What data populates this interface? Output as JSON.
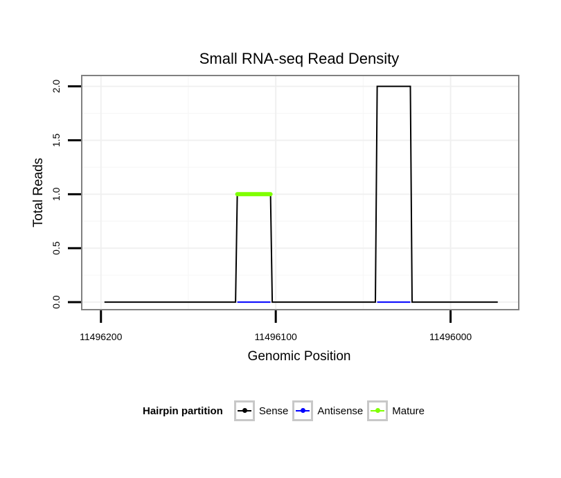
{
  "chart_data": {
    "type": "line",
    "title": "Small RNA-seq Read Density",
    "xlabel": "Genomic Position",
    "ylabel": "Total Reads",
    "x_reversed": true,
    "xlim": [
      11496211,
      11495961
    ],
    "ylim": [
      -0.07,
      2.1
    ],
    "x_ticks": [
      11496200,
      11496100,
      11496000
    ],
    "x_tick_labels": [
      "11496200",
      "11496100",
      "11496000"
    ],
    "y_ticks": [
      0,
      0.5,
      1,
      1.5,
      2
    ],
    "y_tick_labels": [
      "0.0",
      "0.5",
      "1.0",
      "1.5",
      "2.0"
    ],
    "legend_title": "Hairpin partition",
    "series": [
      {
        "name": "Sense",
        "color": "#000000",
        "points": [
          [
            11496198,
            0
          ],
          [
            11496123,
            0
          ],
          [
            11496122,
            1
          ],
          [
            11496103,
            1
          ],
          [
            11496102,
            0
          ],
          [
            11496043,
            0
          ],
          [
            11496042,
            2
          ],
          [
            11496023,
            2
          ],
          [
            11496022,
            0
          ],
          [
            11495973,
            0
          ]
        ]
      },
      {
        "name": "Antisense",
        "color": "#0000ff",
        "points": [
          [
            11496122,
            0
          ],
          [
            11496103,
            0
          ],
          [
            11496042,
            0
          ],
          [
            11496023,
            0
          ]
        ]
      },
      {
        "name": "Mature",
        "color": "#7fff00",
        "points": [
          [
            11496122,
            1
          ],
          [
            11496103,
            1
          ]
        ]
      }
    ]
  }
}
